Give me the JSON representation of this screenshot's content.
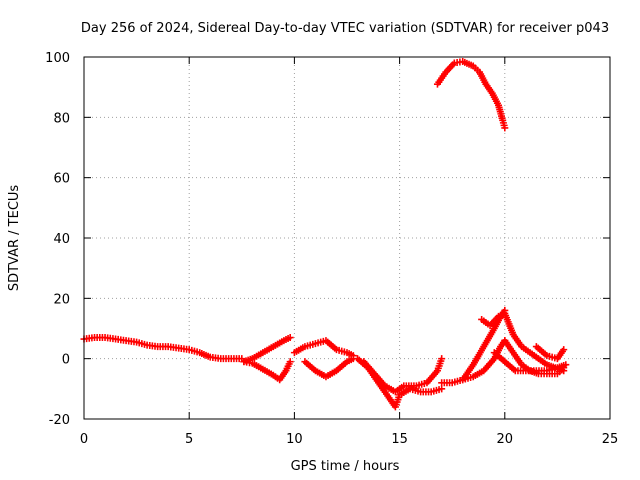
{
  "chart_data": {
    "type": "scatter",
    "title": "Day 256 of 2024, Sidereal Day-to-day VTEC variation (SDTVAR) for receiver p043",
    "xlabel": "GPS time / hours",
    "ylabel": "SDTVAR / TECUs",
    "xlim": [
      0,
      25
    ],
    "ylim": [
      -20,
      100
    ],
    "xticks": [
      0,
      5,
      10,
      15,
      20,
      25
    ],
    "yticks": [
      -20,
      0,
      20,
      40,
      60,
      80,
      100
    ],
    "grid": true,
    "legend": "none",
    "marker": "+",
    "color": "#ff0000",
    "series": [
      {
        "name": "baseline",
        "points": [
          [
            0,
            6.5
          ],
          [
            0.5,
            7
          ],
          [
            1,
            7
          ],
          [
            1.5,
            6.5
          ],
          [
            2,
            6
          ],
          [
            2.5,
            5.5
          ],
          [
            3,
            4.5
          ],
          [
            3.5,
            4
          ],
          [
            4,
            4
          ],
          [
            4.5,
            3.5
          ],
          [
            5,
            3
          ],
          [
            5.5,
            2
          ],
          [
            6,
            0.5
          ],
          [
            6.5,
            0
          ],
          [
            7,
            0
          ],
          [
            7.5,
            0
          ]
        ]
      },
      {
        "name": "segment-8-to-10-upper",
        "points": [
          [
            7.6,
            -1
          ],
          [
            8,
            0
          ],
          [
            8.5,
            2
          ],
          [
            9,
            4
          ],
          [
            9.5,
            6
          ],
          [
            9.8,
            7
          ]
        ]
      },
      {
        "name": "segment-8-to-10-lower",
        "points": [
          [
            7.6,
            -1
          ],
          [
            8,
            -1.5
          ],
          [
            8.5,
            -3.5
          ],
          [
            9,
            -5.5
          ],
          [
            9.3,
            -7
          ],
          [
            9.6,
            -4
          ],
          [
            9.8,
            -1
          ]
        ]
      },
      {
        "name": "segment-10-to-13",
        "points": [
          [
            10,
            2
          ],
          [
            10.5,
            4
          ],
          [
            11,
            5
          ],
          [
            11.5,
            6
          ],
          [
            12,
            3
          ],
          [
            12.5,
            2
          ],
          [
            12.8,
            1
          ]
        ]
      },
      {
        "name": "segment-10-to-13-dip",
        "points": [
          [
            10.5,
            -1
          ],
          [
            11,
            -4
          ],
          [
            11.5,
            -6
          ],
          [
            12,
            -4
          ],
          [
            12.5,
            -1
          ],
          [
            12.8,
            0
          ]
        ]
      },
      {
        "name": "segment-13-to-17",
        "points": [
          [
            13,
            0
          ],
          [
            13.5,
            -3
          ],
          [
            14,
            -8
          ],
          [
            14.5,
            -13
          ],
          [
            14.8,
            -16
          ],
          [
            15,
            -12
          ],
          [
            15.5,
            -10
          ],
          [
            16,
            -11
          ],
          [
            16.5,
            -11
          ],
          [
            17,
            -10
          ]
        ]
      },
      {
        "name": "segment-13-to-17-alt",
        "points": [
          [
            13.3,
            -1
          ],
          [
            13.8,
            -5
          ],
          [
            14.3,
            -9
          ],
          [
            14.8,
            -11
          ],
          [
            15.2,
            -9
          ],
          [
            15.8,
            -9
          ],
          [
            16.3,
            -8
          ],
          [
            16.8,
            -4
          ],
          [
            17,
            0
          ]
        ]
      },
      {
        "name": "rise-17-to-20",
        "points": [
          [
            17,
            -8
          ],
          [
            17.5,
            -8
          ],
          [
            18,
            -7
          ],
          [
            18.5,
            -2
          ],
          [
            19,
            4
          ],
          [
            19.5,
            10
          ],
          [
            19.8,
            14
          ],
          [
            20,
            16
          ]
        ]
      },
      {
        "name": "rise-17-to-20-alt",
        "points": [
          [
            18,
            -7
          ],
          [
            18.5,
            -6
          ],
          [
            19,
            -4
          ],
          [
            19.5,
            0
          ],
          [
            19.8,
            4
          ],
          [
            20,
            6
          ]
        ]
      },
      {
        "name": "fall-20-to-23",
        "points": [
          [
            18.9,
            13
          ],
          [
            19.3,
            11
          ],
          [
            19.7,
            14
          ],
          [
            20,
            15
          ],
          [
            20.4,
            8
          ],
          [
            20.8,
            4
          ],
          [
            21.2,
            2
          ],
          [
            21.6,
            0
          ],
          [
            22,
            -2
          ],
          [
            22.4,
            -3
          ],
          [
            22.8,
            -4
          ]
        ]
      },
      {
        "name": "fall-20-to-23-alt",
        "points": [
          [
            20,
            6
          ],
          [
            20.4,
            2
          ],
          [
            20.8,
            -2
          ],
          [
            21.2,
            -4
          ],
          [
            21.6,
            -5
          ],
          [
            22,
            -5
          ],
          [
            22.5,
            -5
          ],
          [
            22.8,
            -3
          ]
        ]
      },
      {
        "name": "fall-20-to-23-third",
        "points": [
          [
            19.5,
            2
          ],
          [
            20,
            -1
          ],
          [
            20.5,
            -4
          ],
          [
            21,
            -4
          ],
          [
            21.5,
            -4
          ],
          [
            22,
            -4
          ],
          [
            22.5,
            -3
          ],
          [
            22.9,
            -2
          ]
        ]
      },
      {
        "name": "bump-21-to-23",
        "points": [
          [
            21.5,
            4
          ],
          [
            22,
            1
          ],
          [
            22.5,
            0
          ],
          [
            22.8,
            3
          ]
        ]
      },
      {
        "name": "high-arc",
        "points": [
          [
            16.8,
            91
          ],
          [
            17.2,
            95
          ],
          [
            17.6,
            98
          ],
          [
            18,
            98.5
          ],
          [
            18.5,
            97
          ],
          [
            18.8,
            95
          ],
          [
            19.1,
            91
          ],
          [
            19.4,
            88
          ],
          [
            19.7,
            84
          ],
          [
            19.9,
            79
          ],
          [
            20,
            76.5
          ]
        ]
      }
    ]
  }
}
